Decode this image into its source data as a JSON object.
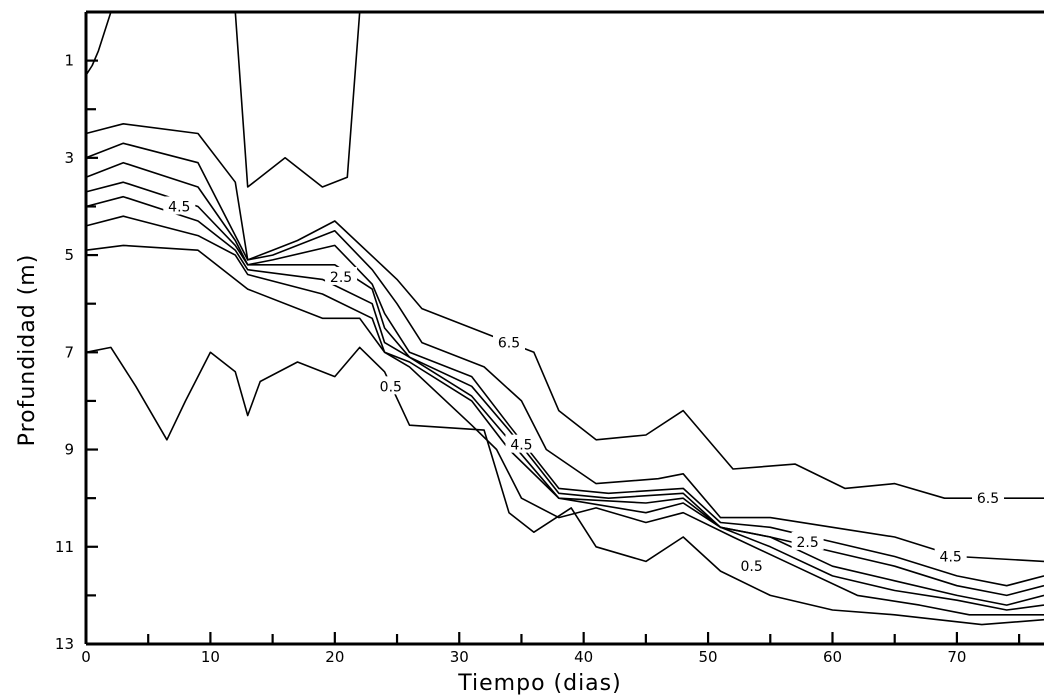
{
  "chart_data": {
    "type": "line",
    "subtype": "contour",
    "xlabel": "Tiempo  (dias)",
    "ylabel": "Profundidad  (m)",
    "xlim": [
      0,
      77
    ],
    "ylim": [
      13,
      0
    ],
    "y_inverted": true,
    "grid": false,
    "legend": "none",
    "x_ticks": [
      0,
      10,
      20,
      30,
      40,
      50,
      60,
      70
    ],
    "x_minor_ticks": [
      5,
      15,
      25,
      35,
      45,
      55,
      65,
      75
    ],
    "y_ticks": [
      1,
      3,
      5,
      7,
      9,
      11,
      13
    ],
    "y_minor_ticks": [
      2,
      4,
      6,
      8,
      10,
      12
    ],
    "series": [
      {
        "level": 6.5,
        "x": [
          0,
          3,
          9,
          12,
          13,
          15,
          17,
          20,
          25,
          27,
          32,
          36,
          38,
          41,
          45,
          48,
          52,
          57,
          61,
          65,
          69,
          77
        ],
        "y": [
          2.5,
          2.3,
          2.5,
          3.5,
          5.1,
          4.9,
          4.7,
          4.3,
          5.5,
          6.1,
          6.6,
          7.0,
          8.2,
          8.8,
          8.7,
          8.2,
          9.4,
          9.3,
          9.8,
          9.7,
          10.0,
          10.0
        ]
      },
      {
        "level": 5.5,
        "x": [
          0,
          3,
          9,
          12,
          13,
          15,
          20,
          23,
          25,
          27,
          32,
          35,
          37,
          41,
          46,
          48,
          51,
          55,
          60,
          65,
          70,
          77
        ],
        "y": [
          3.0,
          2.7,
          3.1,
          4.6,
          5.1,
          5.0,
          4.5,
          5.3,
          6.0,
          6.8,
          7.3,
          8.0,
          9.0,
          9.7,
          9.6,
          9.5,
          10.4,
          10.4,
          10.6,
          10.8,
          11.2,
          11.3
        ]
      },
      {
        "level": 4.5,
        "x": [
          0,
          3,
          9,
          12,
          13,
          15,
          20,
          23,
          24,
          26,
          31,
          34,
          38,
          42,
          48,
          51,
          55,
          60,
          65,
          70,
          74,
          77
        ],
        "y": [
          3.4,
          3.1,
          3.6,
          4.7,
          5.2,
          5.1,
          4.8,
          5.6,
          6.2,
          7.0,
          7.5,
          8.5,
          9.8,
          9.9,
          9.8,
          10.5,
          10.6,
          10.9,
          11.2,
          11.6,
          11.8,
          11.6
        ]
      },
      {
        "level": 3.5,
        "x": [
          0,
          3,
          9,
          12,
          13,
          20,
          23,
          24,
          26,
          31,
          34,
          38,
          42,
          48,
          51,
          55,
          60,
          65,
          70,
          74,
          77
        ],
        "y": [
          3.7,
          3.5,
          4.0,
          4.8,
          5.2,
          5.2,
          5.7,
          6.5,
          7.1,
          7.7,
          8.6,
          9.9,
          10.0,
          9.9,
          10.6,
          10.8,
          11.1,
          11.4,
          11.8,
          12.0,
          11.8
        ]
      },
      {
        "level": 2.5,
        "x": [
          0,
          3,
          9,
          12,
          13,
          19,
          23,
          24,
          26,
          31,
          34,
          38,
          45,
          48,
          51,
          55,
          60,
          65,
          70,
          74,
          77
        ],
        "y": [
          4.0,
          3.8,
          4.3,
          4.9,
          5.3,
          5.5,
          6.0,
          6.8,
          7.1,
          7.9,
          8.8,
          10.0,
          10.1,
          10.0,
          10.6,
          10.8,
          11.4,
          11.7,
          12.0,
          12.2,
          12.0
        ]
      },
      {
        "level": 1.5,
        "x": [
          0,
          3,
          9,
          12,
          13,
          19,
          23,
          24,
          26,
          31,
          34,
          38,
          45,
          48,
          51,
          55,
          60,
          65,
          70,
          74,
          77
        ],
        "y": [
          4.4,
          4.2,
          4.6,
          5.0,
          5.4,
          5.8,
          6.3,
          7.0,
          7.2,
          8.0,
          9.0,
          10.0,
          10.3,
          10.1,
          10.6,
          11.0,
          11.6,
          11.9,
          12.1,
          12.3,
          12.2
        ]
      },
      {
        "level": 0.5,
        "x": [
          0,
          3,
          9,
          13,
          19,
          22,
          24,
          26,
          31,
          33,
          35,
          38,
          41,
          45,
          48,
          52,
          57,
          62,
          67,
          71,
          77
        ],
        "y": [
          4.9,
          4.8,
          4.9,
          5.7,
          6.3,
          6.3,
          7.0,
          7.3,
          8.5,
          9.0,
          10.0,
          10.4,
          10.2,
          10.5,
          10.3,
          10.8,
          11.4,
          12.0,
          12.2,
          12.4,
          12.4
        ]
      },
      {
        "level": 0.5,
        "x": [
          0,
          2,
          4,
          6.5,
          8,
          10,
          12,
          13,
          14,
          17,
          20,
          22,
          24,
          26,
          32,
          34,
          36,
          39,
          41,
          45,
          48,
          51,
          55,
          60,
          65,
          72,
          77
        ],
        "y": [
          7.0,
          6.9,
          7.7,
          8.8,
          8.0,
          7.0,
          7.4,
          8.3,
          7.6,
          7.2,
          7.5,
          6.9,
          7.4,
          8.5,
          8.6,
          10.3,
          10.7,
          10.2,
          11.0,
          11.3,
          10.8,
          11.5,
          12.0,
          12.3,
          12.4,
          12.6,
          12.5
        ]
      },
      {
        "level": null,
        "x": [
          0,
          0.5,
          1,
          2,
          3,
          7,
          12,
          13,
          16,
          19,
          21,
          22
        ],
        "y": [
          1.3,
          1.1,
          0.8,
          0.0,
          0.0,
          0.0,
          0.0,
          3.6,
          3.0,
          3.6,
          3.4,
          0.0
        ]
      }
    ],
    "labels": [
      {
        "text": "4.5",
        "x": 7.5,
        "y": 4.0
      },
      {
        "text": "2.5",
        "x": 20.5,
        "y": 5.45
      },
      {
        "text": "6.5",
        "x": 34,
        "y": 6.8
      },
      {
        "text": "0.5",
        "x": 24.5,
        "y": 7.7
      },
      {
        "text": "4.5",
        "x": 35,
        "y": 8.9
      },
      {
        "text": "6.5",
        "x": 72.5,
        "y": 10.0
      },
      {
        "text": "2.5",
        "x": 58,
        "y": 10.9
      },
      {
        "text": "0.5",
        "x": 53.5,
        "y": 11.4
      },
      {
        "text": "4.5",
        "x": 69.5,
        "y": 11.2
      }
    ]
  }
}
